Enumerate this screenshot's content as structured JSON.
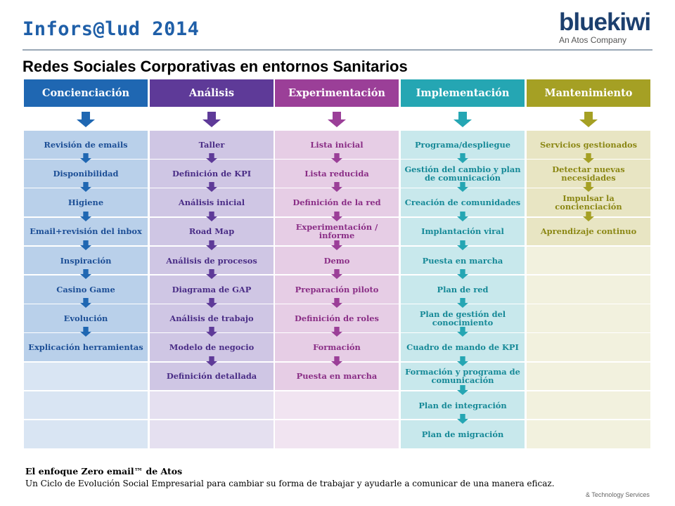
{
  "header": {
    "title": "Infors@lud 2014"
  },
  "logo": {
    "name": "bluekiwi",
    "tagline": "An Atos Company"
  },
  "subtitle": "Redes Sociales Corporativas en entornos Sanitarios",
  "colors": {
    "title_blue": "#1f5fa8",
    "rule": "#9aa7b6"
  },
  "columns": [
    {
      "title": "Concienciación",
      "color": "#1f67b2",
      "cell_color": "#b9d0ea",
      "text_color": "#1d4f96",
      "items": [
        "Revisión de emails",
        "Disponibilidad",
        "Higiene",
        "Email+revisión del inbox",
        "Inspiración",
        "Casino Game",
        "Evolución",
        "Explicación herramientas"
      ]
    },
    {
      "title": "Análisis",
      "color": "#5e3a98",
      "cell_color": "#cfc6e4",
      "text_color": "#4a2d86",
      "items": [
        "Taller",
        "Definición de KPI",
        "Análisis inicial",
        "Road Map",
        "Análisis de procesos",
        "Diagrama de GAP",
        "Análisis de trabajo",
        "Modelo de negocio",
        "Definición detallada"
      ]
    },
    {
      "title": "Experimentación",
      "color": "#9b3f98",
      "cell_color": "#e6cde5",
      "text_color": "#8a2e86",
      "items": [
        "Lista inicial",
        "Lista reducida",
        "Definición de la red",
        "Experimentación / informe",
        "Demo",
        "Preparación piloto",
        "Definición de roles",
        "Formación",
        "Puesta en marcha"
      ]
    },
    {
      "title": "Implementación",
      "color": "#25a6b3",
      "cell_color": "#c8e8ec",
      "text_color": "#168997",
      "items": [
        "Programa/despliegue",
        "Gestión del cambio y plan de comunicación",
        "Creación de comunidades",
        "Implantación viral",
        "Puesta en marcha",
        "Plan de red",
        "Plan de gestión del conocimiento",
        "Cuadro de mando de KPI",
        "Formación y programa de comunicación",
        "Plan de integración",
        "Plan de migración"
      ]
    },
    {
      "title": "Mantenimiento",
      "color": "#a5a024",
      "cell_color": "#e8e5c3",
      "text_color": "#8b8714",
      "items": [
        "Servicios gestionados",
        "Detectar nuevas necesidades",
        "Impulsar la concienciación",
        "Aprendizaje continuo"
      ]
    }
  ],
  "footer": {
    "title": "El enfoque Zero email™ de Atos",
    "text": "Un Ciclo de Evolución Social Empresarial para cambiar su forma de trabajar y ayudarle a comunicar de una manera eficaz.",
    "brand": "& Technology Services"
  }
}
